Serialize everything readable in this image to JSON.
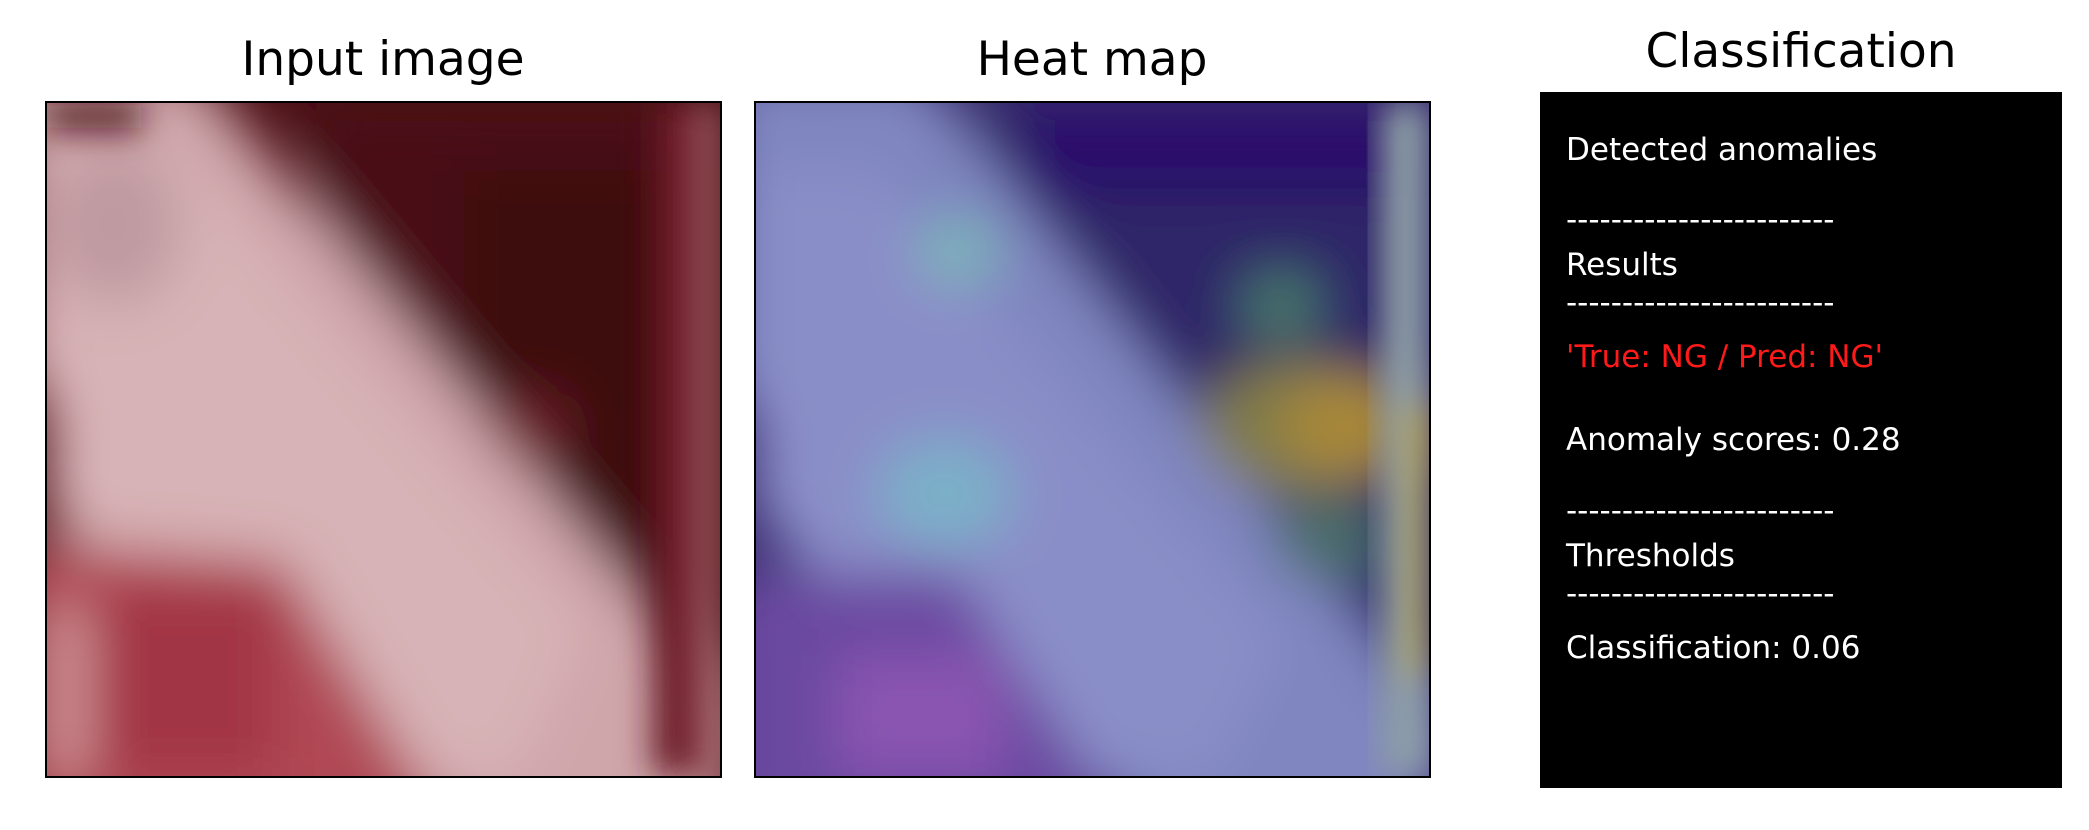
{
  "titles": {
    "input": "Input image",
    "heat": "Heat map",
    "classification": "Classification"
  },
  "classification_box": {
    "detected": "Detected anomalies",
    "dash": "------------------------",
    "results": "Results",
    "prediction": "'True: NG / Pred: NG'",
    "anomaly_score": "Anomaly scores: 0.28",
    "thresholds": "Thresholds",
    "classification_threshold": "Classification: 0.06"
  },
  "colors": {
    "prediction_text": "#ff1a1a",
    "box_background": "#000000"
  }
}
